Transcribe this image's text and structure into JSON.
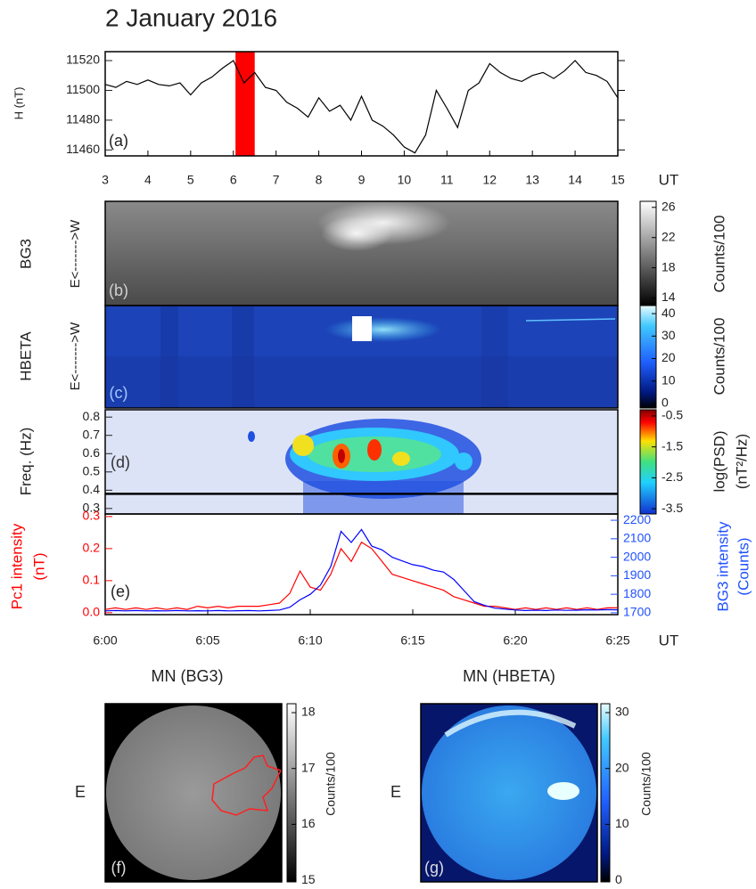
{
  "title": "2 January 2016",
  "chart_data": [
    {
      "type": "line",
      "panel": "(a)",
      "ylabel": "H (nT)",
      "xlabel": "UT",
      "color": "#000000",
      "x": [
        3,
        3.25,
        3.5,
        3.75,
        4,
        4.25,
        4.5,
        4.75,
        5,
        5.25,
        5.5,
        5.75,
        6,
        6.25,
        6.5,
        6.75,
        7,
        7.25,
        7.5,
        7.75,
        8,
        8.25,
        8.5,
        8.75,
        9,
        9.25,
        9.5,
        9.75,
        10,
        10.25,
        10.5,
        10.75,
        11,
        11.25,
        11.5,
        11.75,
        12,
        12.25,
        12.5,
        12.75,
        13,
        13.25,
        13.5,
        13.75,
        14,
        14.25,
        14.5,
        14.75,
        15
      ],
      "values": [
        11504,
        11502,
        11506,
        11504,
        11507,
        11504,
        11503,
        11505,
        11497,
        11505,
        11509,
        11515,
        11520,
        11505,
        11512,
        11502,
        11500,
        11492,
        11488,
        11482,
        11495,
        11486,
        11490,
        11480,
        11496,
        11480,
        11476,
        11470,
        11462,
        11458,
        11470,
        11500,
        11488,
        11475,
        11500,
        11505,
        11518,
        11512,
        11508,
        11506,
        11510,
        11512,
        11508,
        11513,
        11520,
        11512,
        11510,
        11506,
        11495
      ],
      "xlim": [
        3,
        15
      ],
      "xticks": [
        3,
        4,
        5,
        6,
        7,
        8,
        9,
        10,
        11,
        12,
        13,
        14,
        15
      ],
      "ylim": [
        11456,
        11526
      ],
      "yticks": [
        11460,
        11480,
        11500,
        11520
      ],
      "highlight": {
        "range": [
          6.05,
          6.5
        ],
        "color": "#ff0000"
      }
    },
    {
      "type": "image",
      "panel": "(b)",
      "ylabel": "BG3",
      "direction": "E<------->W",
      "colorbar_label": "Counts/100",
      "clim": [
        13,
        26.8
      ],
      "cticks": [
        14,
        18,
        22,
        26
      ]
    },
    {
      "type": "image",
      "panel": "(c)",
      "ylabel": "HBETA",
      "direction": "E<------->W",
      "colorbar_label": "Counts/100",
      "clim": [
        -2,
        43.6
      ],
      "cticks": [
        0,
        10,
        20,
        30,
        40
      ]
    },
    {
      "type": "image",
      "panel": "(d)",
      "ylabel": "Freq. (Hz)",
      "ylim": [
        0.27,
        0.84
      ],
      "yticks": [
        0.3,
        0.4,
        0.5,
        0.6,
        0.7,
        0.8
      ],
      "hline": 0.38,
      "colorbar_label": "log(PSD)",
      "colorbar_unit": "(nT²/Hz)",
      "clim": [
        -3.67,
        -0.3
      ],
      "cticks": [
        -0.5,
        -1.5,
        -2.5,
        -3.5
      ]
    },
    {
      "type": "line",
      "panel": "(e)",
      "xlabel": "UT",
      "ylabel": "Pc1 intensity",
      "yunit": "(nT)",
      "y2label": "BG3 intensity",
      "y2unit": "(Counts)",
      "x": [
        360,
        360.5,
        361,
        361.5,
        362,
        362.5,
        363,
        363.5,
        364,
        364.5,
        365,
        365.5,
        366,
        366.5,
        367,
        367.5,
        368,
        368.5,
        369,
        369.5,
        370,
        370.5,
        371,
        371.5,
        372,
        372.5,
        373,
        373.5,
        374,
        374.5,
        375,
        375.5,
        376,
        376.5,
        377,
        377.5,
        378,
        378.5,
        379,
        379.5,
        380,
        380.5,
        381,
        381.5,
        382,
        382.5,
        383,
        383.5,
        384,
        384.5,
        385
      ],
      "xlim": [
        360,
        385
      ],
      "xticks": [
        {
          "value": 360,
          "label": "6:00"
        },
        {
          "value": 365,
          "label": "6:05"
        },
        {
          "value": 370,
          "label": "6:10"
        },
        {
          "value": 375,
          "label": "6:15"
        },
        {
          "value": 380,
          "label": "6:20"
        },
        {
          "value": 385,
          "label": "6:25"
        }
      ],
      "ylim": [
        -0.006,
        0.308
      ],
      "yticks": [
        {
          "value": 0,
          "label": "0.0"
        },
        0.1,
        0.2,
        0.3
      ],
      "y2lim": [
        1690,
        2234
      ],
      "y2ticks": [
        1700,
        1800,
        1900,
        2000,
        2100,
        2200
      ],
      "series": [
        {
          "color": "#ff0000",
          "values": [
            0.01,
            0.015,
            0.01,
            0.015,
            0.01,
            0.015,
            0.01,
            0.015,
            0.01,
            0.02,
            0.015,
            0.02,
            0.015,
            0.02,
            0.02,
            0.02,
            0.025,
            0.03,
            0.06,
            0.13,
            0.08,
            0.07,
            0.12,
            0.2,
            0.16,
            0.22,
            0.2,
            0.16,
            0.12,
            0.11,
            0.1,
            0.09,
            0.08,
            0.07,
            0.05,
            0.04,
            0.03,
            0.02,
            0.02,
            0.015,
            0.01,
            0.015,
            0.01,
            0.015,
            0.01,
            0.015,
            0.01,
            0.015,
            0.01,
            0.015,
            0.015
          ]
        },
        {
          "color": "#0000ff",
          "axis": "y2",
          "values": [
            1710,
            1712,
            1710,
            1712,
            1710,
            1711,
            1710,
            1712,
            1710,
            1711,
            1710,
            1712,
            1710,
            1711,
            1712,
            1710,
            1712,
            1715,
            1730,
            1770,
            1800,
            1850,
            1950,
            2140,
            2080,
            2150,
            2060,
            2040,
            2000,
            1980,
            1960,
            1950,
            1930,
            1920,
            1880,
            1820,
            1760,
            1740,
            1725,
            1720,
            1715,
            1712,
            1714,
            1712,
            1715,
            1713,
            1714,
            1716,
            1715,
            1717,
            1716
          ]
        }
      ]
    },
    {
      "type": "image",
      "title": "MN (BG3)",
      "side_label": "E",
      "panel": "(f)",
      "colorbar_label": "Counts/100",
      "clim": [
        14.97,
        18.16
      ],
      "cticks": [
        15,
        16,
        17,
        18
      ]
    },
    {
      "type": "image",
      "title": "MN (HBETA)",
      "side_label": "E",
      "panel": "(g)",
      "colorbar_label": "Counts/100",
      "clim": [
        -0.3,
        31.6
      ],
      "cticks": [
        0,
        10,
        20,
        30
      ]
    }
  ]
}
